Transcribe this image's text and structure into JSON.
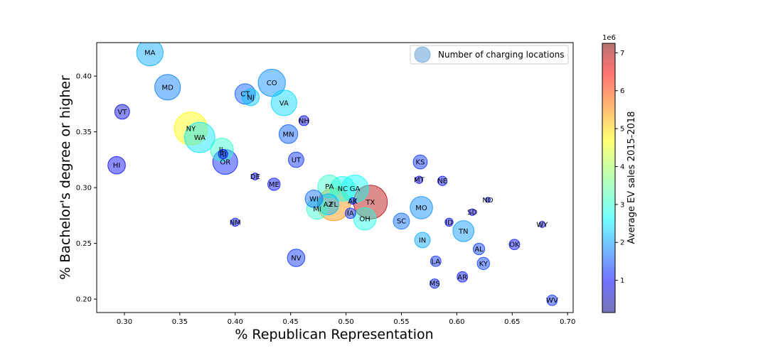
{
  "chart_data": {
    "type": "scatter",
    "xlabel": "% Republican Representation",
    "ylabel": "% Bachelor's degree or higher",
    "xlim": [
      0.275,
      0.705
    ],
    "ylim": [
      0.188,
      0.43
    ],
    "xticks": [
      0.3,
      0.35,
      0.4,
      0.45,
      0.5,
      0.55,
      0.6,
      0.65,
      0.7
    ],
    "yticks": [
      0.2,
      0.25,
      0.3,
      0.35,
      0.4
    ],
    "legend": {
      "label": "Number of charging locations",
      "placement": "top-right"
    },
    "colorbar": {
      "label": "Average EV sales 2015-2018",
      "multiplier": "1e6",
      "range": [
        0.15,
        7.25
      ],
      "ticks": [
        1,
        2,
        3,
        4,
        5,
        6,
        7
      ],
      "colormap": "jet"
    },
    "points": [
      {
        "label": "MA",
        "x": 0.323,
        "y": 0.421,
        "size": 3200,
        "color": 2.0
      },
      {
        "label": "MD",
        "x": 0.339,
        "y": 0.39,
        "size": 3000,
        "color": 1.7
      },
      {
        "label": "CO",
        "x": 0.433,
        "y": 0.394,
        "size": 3400,
        "color": 1.8
      },
      {
        "label": "CT",
        "x": 0.409,
        "y": 0.384,
        "size": 1900,
        "color": 1.5
      },
      {
        "label": "NJ",
        "x": 0.414,
        "y": 0.381,
        "size": 1300,
        "color": 2.2
      },
      {
        "label": "VA",
        "x": 0.444,
        "y": 0.376,
        "size": 3000,
        "color": 2.3
      },
      {
        "label": "VT",
        "x": 0.298,
        "y": 0.368,
        "size": 1000,
        "color": 0.7
      },
      {
        "label": "NH",
        "x": 0.462,
        "y": 0.36,
        "size": 450,
        "color": 0.8
      },
      {
        "label": "NY",
        "x": 0.36,
        "y": 0.353,
        "size": 5000,
        "color": 4.8
      },
      {
        "label": "MN",
        "x": 0.448,
        "y": 0.348,
        "size": 1600,
        "color": 1.5
      },
      {
        "label": "WA",
        "x": 0.368,
        "y": 0.345,
        "size": 4200,
        "color": 2.4
      },
      {
        "label": "IL",
        "x": 0.388,
        "y": 0.334,
        "size": 2400,
        "color": 3.0
      },
      {
        "label": "RI",
        "x": 0.389,
        "y": 0.33,
        "size": 400,
        "color": 0.9
      },
      {
        "label": "OR",
        "x": 0.391,
        "y": 0.323,
        "size": 2800,
        "color": 1.1
      },
      {
        "label": "HI",
        "x": 0.293,
        "y": 0.32,
        "size": 1400,
        "color": 0.9
      },
      {
        "label": "UT",
        "x": 0.455,
        "y": 0.325,
        "size": 1100,
        "color": 1.2
      },
      {
        "label": "KS",
        "x": 0.567,
        "y": 0.323,
        "size": 900,
        "color": 1.2
      },
      {
        "label": "DE",
        "x": 0.418,
        "y": 0.31,
        "size": 220,
        "color": 0.8
      },
      {
        "label": "ME",
        "x": 0.435,
        "y": 0.303,
        "size": 700,
        "color": 1.0
      },
      {
        "label": "MT",
        "x": 0.566,
        "y": 0.307,
        "size": 250,
        "color": 0.8
      },
      {
        "label": "NE",
        "x": 0.587,
        "y": 0.306,
        "size": 400,
        "color": 1.0
      },
      {
        "label": "PA",
        "x": 0.485,
        "y": 0.301,
        "size": 2400,
        "color": 3.0
      },
      {
        "label": "NC",
        "x": 0.497,
        "y": 0.299,
        "size": 2800,
        "color": 2.7
      },
      {
        "label": "GA",
        "x": 0.508,
        "y": 0.299,
        "size": 3400,
        "color": 2.6
      },
      {
        "label": "WI",
        "x": 0.471,
        "y": 0.29,
        "size": 1400,
        "color": 1.6
      },
      {
        "label": "ND",
        "x": 0.628,
        "y": 0.289,
        "size": 120,
        "color": 0.8
      },
      {
        "label": "AK",
        "x": 0.506,
        "y": 0.288,
        "size": 200,
        "color": 1.0
      },
      {
        "label": "TX",
        "x": 0.522,
        "y": 0.287,
        "size": 5200,
        "color": 6.9
      },
      {
        "label": "AZ",
        "x": 0.484,
        "y": 0.285,
        "size": 2000,
        "color": 2.1
      },
      {
        "label": "FL",
        "x": 0.489,
        "y": 0.285,
        "size": 4900,
        "color": 5.5
      },
      {
        "label": "MI",
        "x": 0.474,
        "y": 0.281,
        "size": 2000,
        "color": 3.0
      },
      {
        "label": "MO",
        "x": 0.568,
        "y": 0.282,
        "size": 2300,
        "color": 1.8
      },
      {
        "label": "IA",
        "x": 0.504,
        "y": 0.277,
        "size": 500,
        "color": 1.2
      },
      {
        "label": "SD",
        "x": 0.614,
        "y": 0.278,
        "size": 200,
        "color": 0.9
      },
      {
        "label": "OH",
        "x": 0.517,
        "y": 0.272,
        "size": 2300,
        "color": 2.8
      },
      {
        "label": "SC",
        "x": 0.55,
        "y": 0.27,
        "size": 1200,
        "color": 1.6
      },
      {
        "label": "NM",
        "x": 0.4,
        "y": 0.269,
        "size": 300,
        "color": 1.0
      },
      {
        "label": "ID",
        "x": 0.593,
        "y": 0.269,
        "size": 300,
        "color": 1.0
      },
      {
        "label": "WY",
        "x": 0.677,
        "y": 0.267,
        "size": 180,
        "color": 0.7
      },
      {
        "label": "TN",
        "x": 0.606,
        "y": 0.261,
        "size": 2000,
        "color": 1.9
      },
      {
        "label": "IN",
        "x": 0.569,
        "y": 0.253,
        "size": 1100,
        "color": 2.0
      },
      {
        "label": "OK",
        "x": 0.652,
        "y": 0.249,
        "size": 500,
        "color": 1.0
      },
      {
        "label": "AL",
        "x": 0.62,
        "y": 0.245,
        "size": 600,
        "color": 1.3
      },
      {
        "label": "NV",
        "x": 0.455,
        "y": 0.237,
        "size": 1400,
        "color": 1.2
      },
      {
        "label": "LA",
        "x": 0.581,
        "y": 0.234,
        "size": 500,
        "color": 1.2
      },
      {
        "label": "KY",
        "x": 0.624,
        "y": 0.232,
        "size": 700,
        "color": 1.3
      },
      {
        "label": "AR",
        "x": 0.605,
        "y": 0.22,
        "size": 500,
        "color": 1.0
      },
      {
        "label": "MS",
        "x": 0.58,
        "y": 0.214,
        "size": 400,
        "color": 1.1
      },
      {
        "label": "WV",
        "x": 0.686,
        "y": 0.199,
        "size": 500,
        "color": 1.2
      }
    ]
  }
}
